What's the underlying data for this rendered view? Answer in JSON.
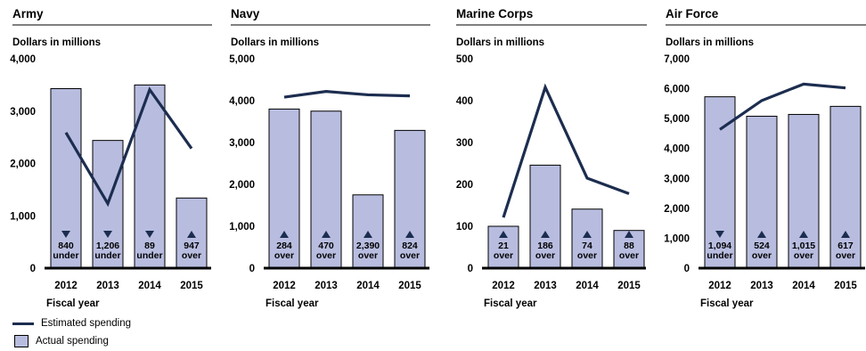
{
  "colors": {
    "estimated_line": "#1c2d4f",
    "actual_bar": "#b8bde0",
    "bar_border": "#000000",
    "marker": "#1c2d4f"
  },
  "legend": {
    "estimated": "Estimated spending",
    "actual": "Actual spending"
  },
  "chart_data": [
    {
      "type": "bar",
      "title": "Army",
      "ylabel": "Dollars in millions",
      "xlabel": "Fiscal year",
      "ylim": [
        0,
        4000
      ],
      "yticks": [
        0,
        1000,
        2000,
        3000,
        4000
      ],
      "ytick_labels": [
        "0",
        "1,000",
        "2,000",
        "3,000",
        "4,000"
      ],
      "categories": [
        "2012",
        "2013",
        "2014",
        "2015"
      ],
      "series": [
        {
          "name": "Actual spending",
          "type": "bar",
          "values": [
            3430,
            2440,
            3500,
            1340
          ]
        },
        {
          "name": "Estimated spending",
          "type": "line",
          "values": [
            2590,
            1234,
            3411,
            2287
          ]
        }
      ],
      "annotations": [
        {
          "value": "840",
          "dir": "under"
        },
        {
          "value": "1,206",
          "dir": "under"
        },
        {
          "value": "89",
          "dir": "under"
        },
        {
          "value": "947",
          "dir": "over"
        }
      ]
    },
    {
      "type": "bar",
      "title": "Navy",
      "ylabel": "Dollars in millions",
      "xlabel": "Fiscal year",
      "ylim": [
        0,
        5000
      ],
      "yticks": [
        0,
        1000,
        2000,
        3000,
        4000,
        5000
      ],
      "ytick_labels": [
        "0",
        "1,000",
        "2,000",
        "3,000",
        "4,000",
        "5,000"
      ],
      "categories": [
        "2012",
        "2013",
        "2014",
        "2015"
      ],
      "series": [
        {
          "name": "Actual spending",
          "type": "bar",
          "values": [
            3800,
            3750,
            1750,
            3290
          ]
        },
        {
          "name": "Estimated spending",
          "type": "line",
          "values": [
            4084,
            4220,
            4140,
            4114
          ]
        }
      ],
      "annotations": [
        {
          "value": "284",
          "dir": "over"
        },
        {
          "value": "470",
          "dir": "over"
        },
        {
          "value": "2,390",
          "dir": "over"
        },
        {
          "value": "824",
          "dir": "over"
        }
      ]
    },
    {
      "type": "bar",
      "title": "Marine Corps",
      "ylabel": "Dollars in millions",
      "xlabel": "Fiscal year",
      "ylim": [
        0,
        500
      ],
      "yticks": [
        0,
        100,
        200,
        300,
        400,
        500
      ],
      "ytick_labels": [
        "0",
        "100",
        "200",
        "300",
        "400",
        "500"
      ],
      "categories": [
        "2012",
        "2013",
        "2014",
        "2015"
      ],
      "series": [
        {
          "name": "Actual spending",
          "type": "bar",
          "values": [
            100,
            246,
            141,
            90
          ]
        },
        {
          "name": "Estimated spending",
          "type": "line",
          "values": [
            121,
            432,
            215,
            178
          ]
        }
      ],
      "annotations": [
        {
          "value": "21",
          "dir": "over"
        },
        {
          "value": "186",
          "dir": "over"
        },
        {
          "value": "74",
          "dir": "over"
        },
        {
          "value": "88",
          "dir": "over"
        }
      ]
    },
    {
      "type": "bar",
      "title": "Air Force",
      "ylabel": "Dollars in millions",
      "xlabel": "Fiscal year",
      "ylim": [
        0,
        7000
      ],
      "yticks": [
        0,
        1000,
        2000,
        3000,
        4000,
        5000,
        6000,
        7000
      ],
      "ytick_labels": [
        "0",
        "1,000",
        "2,000",
        "3,000",
        "4,000",
        "5,000",
        "6,000",
        "7,000"
      ],
      "categories": [
        "2012",
        "2013",
        "2014",
        "2015"
      ],
      "series": [
        {
          "name": "Actual spending",
          "type": "bar",
          "values": [
            5730,
            5080,
            5140,
            5410
          ]
        },
        {
          "name": "Estimated spending",
          "type": "line",
          "values": [
            4636,
            5604,
            6155,
            6027
          ]
        }
      ],
      "annotations": [
        {
          "value": "1,094",
          "dir": "under"
        },
        {
          "value": "524",
          "dir": "over"
        },
        {
          "value": "1,015",
          "dir": "over"
        },
        {
          "value": "617",
          "dir": "over"
        }
      ]
    }
  ]
}
